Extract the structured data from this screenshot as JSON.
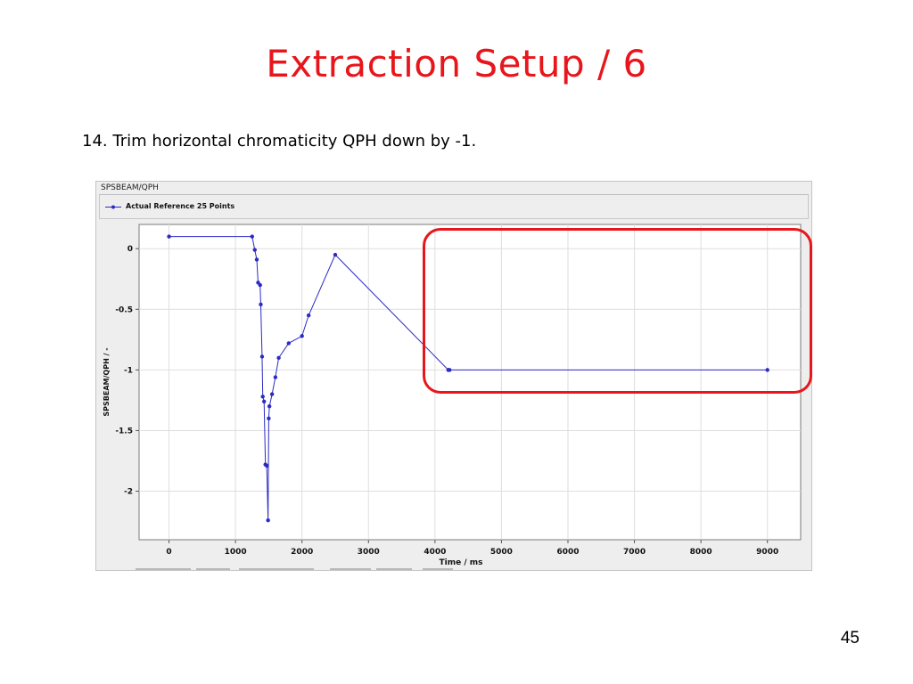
{
  "slide": {
    "title": "Extraction Setup / 6",
    "step": "14. Trim horizontal chromaticity QPH down by -1.",
    "page_number": "45",
    "title_color": "#e8161b"
  },
  "panel": {
    "header": "SPSBEAM/QPH",
    "legend_label": "Actual Reference 25 Points"
  },
  "annotation": {
    "shape": "rounded-rectangle",
    "color": "#e8161b",
    "highlights": "x from 4200 to 9000 ms"
  },
  "chart_data": {
    "type": "line",
    "title": "",
    "xlabel": "Time / ms",
    "ylabel": "SPSBEAM/QPH / -",
    "xlim": [
      -450,
      9500
    ],
    "ylim": [
      -2.4,
      0.2
    ],
    "xticks": [
      0,
      1000,
      2000,
      3000,
      4000,
      5000,
      6000,
      7000,
      8000,
      9000
    ],
    "yticks": [
      0,
      -0.5,
      -1,
      -1.5,
      -2
    ],
    "ytick_labels": [
      "0",
      "-0.5",
      "-1",
      "-1.5",
      "-2"
    ],
    "grid": true,
    "legend_position": "top-left",
    "series": [
      {
        "name": "Actual Reference 25 Points",
        "color": "#2b2bc4",
        "marker": "circle",
        "x": [
          0,
          1250,
          1290,
          1320,
          1340,
          1370,
          1380,
          1400,
          1410,
          1430,
          1450,
          1470,
          1490,
          1500,
          1510,
          1550,
          1600,
          1650,
          1800,
          2000,
          2100,
          2500,
          4200,
          4220,
          9000
        ],
        "y": [
          0.1,
          0.1,
          -0.01,
          -0.09,
          -0.28,
          -0.3,
          -0.46,
          -0.89,
          -1.22,
          -1.26,
          -1.78,
          -1.79,
          -2.24,
          -1.4,
          -1.3,
          -1.2,
          -1.06,
          -0.9,
          -0.78,
          -0.72,
          -0.55,
          -0.05,
          -1.0,
          -1.0,
          -1.0
        ]
      }
    ]
  }
}
